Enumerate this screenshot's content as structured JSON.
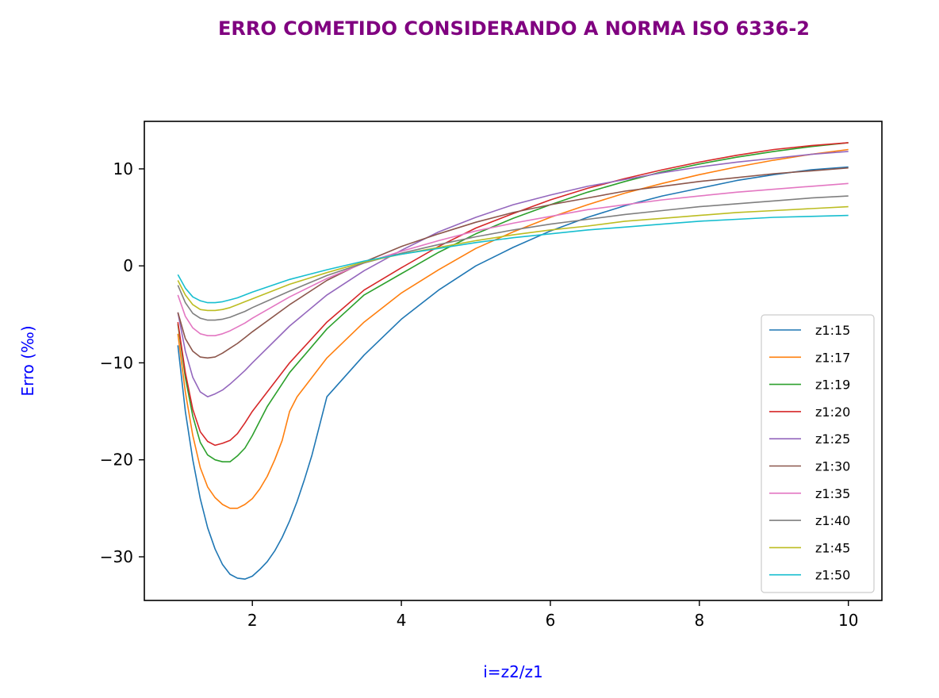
{
  "chart_data": {
    "type": "line",
    "title": "ERRO COMETIDO CONSIDERANDO A NORMA ISO 6336-2",
    "xlabel": "i=z2/z1",
    "ylabel": "Erro (‰)",
    "xlim": [
      0.55,
      10.45
    ],
    "ylim": [
      -34.5,
      14.9
    ],
    "xticks": [
      2,
      4,
      6,
      8,
      10
    ],
    "yticks": [
      10,
      0,
      -10,
      -20,
      -30
    ],
    "xtick_labels": [
      "2",
      "4",
      "6",
      "8",
      "10"
    ],
    "ytick_labels": [
      "10",
      "0",
      "−10",
      "−20",
      "−30"
    ],
    "grid": false,
    "legend_position": "lower-right",
    "title_color": "#800080",
    "label_color": "#0000ff",
    "series": [
      {
        "name": "z1:15",
        "color": "#1f77b4",
        "x": [
          1.0,
          1.1,
          1.2,
          1.3,
          1.4,
          1.5,
          1.6,
          1.7,
          1.8,
          1.9,
          2.0,
          2.1,
          2.2,
          2.3,
          2.4,
          2.5,
          2.6,
          2.7,
          2.8,
          2.9,
          3.0,
          3.5,
          4.0,
          4.5,
          5.0,
          5.5,
          6.0,
          6.5,
          7.0,
          7.5,
          8.0,
          8.5,
          9.0,
          9.5,
          10.0
        ],
        "y": [
          -8.2,
          -15.0,
          -20.0,
          -24.0,
          -27.0,
          -29.2,
          -30.8,
          -31.8,
          -32.2,
          -32.3,
          -32.0,
          -31.3,
          -30.5,
          -29.4,
          -28.0,
          -26.3,
          -24.3,
          -22.0,
          -19.5,
          -16.5,
          -13.5,
          -9.2,
          -5.5,
          -2.5,
          0.0,
          1.9,
          3.6,
          5.0,
          6.2,
          7.2,
          8.0,
          8.8,
          9.4,
          9.9,
          10.2
        ]
      },
      {
        "name": "z1:17",
        "color": "#ff7f0e",
        "x": [
          1.0,
          1.1,
          1.2,
          1.3,
          1.4,
          1.5,
          1.6,
          1.7,
          1.8,
          1.9,
          2.0,
          2.1,
          2.2,
          2.3,
          2.4,
          2.5,
          2.6,
          3.0,
          3.5,
          4.0,
          4.5,
          5.0,
          5.5,
          6.0,
          6.5,
          7.0,
          7.5,
          8.0,
          8.5,
          9.0,
          9.5,
          10.0
        ],
        "y": [
          -7.0,
          -13.0,
          -17.5,
          -20.8,
          -22.8,
          -23.9,
          -24.6,
          -25.0,
          -25.0,
          -24.6,
          -24.0,
          -23.0,
          -21.7,
          -20.0,
          -18.0,
          -15.0,
          -13.5,
          -9.5,
          -5.8,
          -2.8,
          -0.4,
          1.8,
          3.5,
          5.0,
          6.3,
          7.5,
          8.5,
          9.4,
          10.2,
          10.9,
          11.5,
          12.0
        ]
      },
      {
        "name": "z1:19",
        "color": "#2ca02c",
        "x": [
          1.0,
          1.1,
          1.2,
          1.3,
          1.4,
          1.5,
          1.6,
          1.7,
          1.8,
          1.9,
          2.0,
          2.1,
          2.2,
          2.5,
          3.0,
          3.5,
          4.0,
          4.5,
          5.0,
          5.5,
          6.0,
          6.5,
          7.0,
          7.5,
          8.0,
          8.5,
          9.0,
          9.5,
          10.0
        ],
        "y": [
          -6.0,
          -11.5,
          -15.5,
          -18.2,
          -19.5,
          -20.0,
          -20.2,
          -20.2,
          -19.6,
          -18.8,
          -17.5,
          -16.0,
          -14.5,
          -11.0,
          -6.5,
          -3.0,
          -0.8,
          1.4,
          3.3,
          4.9,
          6.3,
          7.6,
          8.7,
          9.7,
          10.5,
          11.2,
          11.8,
          12.3,
          12.7
        ]
      },
      {
        "name": "z1:20",
        "color": "#d62728",
        "x": [
          1.0,
          1.1,
          1.2,
          1.3,
          1.4,
          1.5,
          1.6,
          1.7,
          1.8,
          1.9,
          2.0,
          2.5,
          3.0,
          3.5,
          4.0,
          4.5,
          5.0,
          5.5,
          6.0,
          6.5,
          7.0,
          7.5,
          8.0,
          8.5,
          9.0,
          9.5,
          10.0
        ],
        "y": [
          -5.8,
          -11.0,
          -14.8,
          -17.1,
          -18.1,
          -18.5,
          -18.3,
          -18.0,
          -17.3,
          -16.2,
          -15.0,
          -10.0,
          -5.8,
          -2.5,
          -0.2,
          2.0,
          3.9,
          5.4,
          6.8,
          8.0,
          9.0,
          9.9,
          10.7,
          11.4,
          12.0,
          12.4,
          12.7
        ]
      },
      {
        "name": "z1:25",
        "color": "#9467bd",
        "x": [
          1.0,
          1.1,
          1.2,
          1.3,
          1.4,
          1.5,
          1.6,
          1.7,
          1.8,
          1.9,
          2.0,
          2.5,
          3.0,
          3.5,
          4.0,
          4.5,
          5.0,
          5.5,
          6.0,
          6.5,
          7.0,
          7.5,
          8.0,
          8.5,
          9.0,
          9.5,
          10.0
        ],
        "y": [
          -4.8,
          -8.8,
          -11.5,
          -13.0,
          -13.5,
          -13.2,
          -12.8,
          -12.2,
          -11.5,
          -10.8,
          -10.0,
          -6.2,
          -3.0,
          -0.5,
          1.6,
          3.5,
          5.0,
          6.3,
          7.3,
          8.2,
          8.9,
          9.6,
          10.2,
          10.7,
          11.1,
          11.5,
          11.8
        ]
      },
      {
        "name": "z1:30",
        "color": "#8c564b",
        "x": [
          1.0,
          1.1,
          1.2,
          1.3,
          1.4,
          1.5,
          1.6,
          1.7,
          1.8,
          1.9,
          2.0,
          2.5,
          3.0,
          3.5,
          4.0,
          4.5,
          5.0,
          5.5,
          6.0,
          6.5,
          7.0,
          7.5,
          8.0,
          8.5,
          9.0,
          9.5,
          10.0
        ],
        "y": [
          -4.8,
          -7.5,
          -8.8,
          -9.4,
          -9.5,
          -9.4,
          -9.0,
          -8.5,
          -8.0,
          -7.4,
          -6.8,
          -4.0,
          -1.5,
          0.4,
          2.0,
          3.3,
          4.5,
          5.5,
          6.3,
          7.0,
          7.7,
          8.2,
          8.7,
          9.1,
          9.5,
          9.8,
          10.1
        ]
      },
      {
        "name": "z1:35",
        "color": "#e377c2",
        "x": [
          1.0,
          1.1,
          1.2,
          1.3,
          1.4,
          1.5,
          1.6,
          1.7,
          1.8,
          1.9,
          2.0,
          2.5,
          3.0,
          3.5,
          4.0,
          4.5,
          5.0,
          5.5,
          6.0,
          6.5,
          7.0,
          7.5,
          8.0,
          8.5,
          9.0,
          9.5,
          10.0
        ],
        "y": [
          -3.0,
          -5.2,
          -6.4,
          -7.0,
          -7.2,
          -7.2,
          -7.0,
          -6.7,
          -6.3,
          -5.9,
          -5.4,
          -3.2,
          -1.3,
          0.3,
          1.5,
          2.6,
          3.6,
          4.4,
          5.1,
          5.8,
          6.3,
          6.8,
          7.2,
          7.6,
          7.9,
          8.2,
          8.5
        ]
      },
      {
        "name": "z1:40",
        "color": "#7f7f7f",
        "x": [
          1.0,
          1.1,
          1.2,
          1.3,
          1.4,
          1.5,
          1.6,
          1.7,
          1.8,
          1.9,
          2.0,
          2.5,
          3.0,
          3.5,
          4.0,
          4.5,
          5.0,
          5.5,
          6.0,
          6.5,
          7.0,
          7.5,
          8.0,
          8.5,
          9.0,
          9.5,
          10.0
        ],
        "y": [
          -2.0,
          -3.8,
          -4.9,
          -5.4,
          -5.6,
          -5.6,
          -5.5,
          -5.3,
          -5.0,
          -4.7,
          -4.3,
          -2.6,
          -1.0,
          0.3,
          1.3,
          2.2,
          3.0,
          3.7,
          4.3,
          4.8,
          5.3,
          5.7,
          6.1,
          6.4,
          6.7,
          7.0,
          7.2
        ]
      },
      {
        "name": "z1:45",
        "color": "#bcbd22",
        "x": [
          1.0,
          1.1,
          1.2,
          1.3,
          1.4,
          1.5,
          1.6,
          1.7,
          1.8,
          1.9,
          2.0,
          2.5,
          3.0,
          3.5,
          4.0,
          4.5,
          5.0,
          5.5,
          6.0,
          6.5,
          7.0,
          7.5,
          8.0,
          8.5,
          9.0,
          9.5,
          10.0
        ],
        "y": [
          -1.5,
          -3.0,
          -4.0,
          -4.5,
          -4.6,
          -4.6,
          -4.5,
          -4.3,
          -4.0,
          -3.7,
          -3.4,
          -1.9,
          -0.7,
          0.4,
          1.2,
          1.9,
          2.6,
          3.2,
          3.7,
          4.1,
          4.6,
          4.9,
          5.2,
          5.5,
          5.7,
          5.9,
          6.1
        ]
      },
      {
        "name": "z1:50",
        "color": "#17becf",
        "x": [
          1.0,
          1.1,
          1.2,
          1.3,
          1.4,
          1.5,
          1.6,
          1.7,
          1.8,
          1.9,
          2.0,
          2.5,
          3.0,
          3.5,
          4.0,
          4.5,
          5.0,
          5.5,
          6.0,
          6.5,
          7.0,
          7.5,
          8.0,
          8.5,
          9.0,
          9.5,
          10.0
        ],
        "y": [
          -0.9,
          -2.3,
          -3.2,
          -3.6,
          -3.8,
          -3.8,
          -3.7,
          -3.5,
          -3.3,
          -3.0,
          -2.7,
          -1.4,
          -0.4,
          0.5,
          1.2,
          1.8,
          2.4,
          2.9,
          3.3,
          3.7,
          4.0,
          4.3,
          4.6,
          4.8,
          5.0,
          5.1,
          5.2
        ]
      }
    ]
  }
}
